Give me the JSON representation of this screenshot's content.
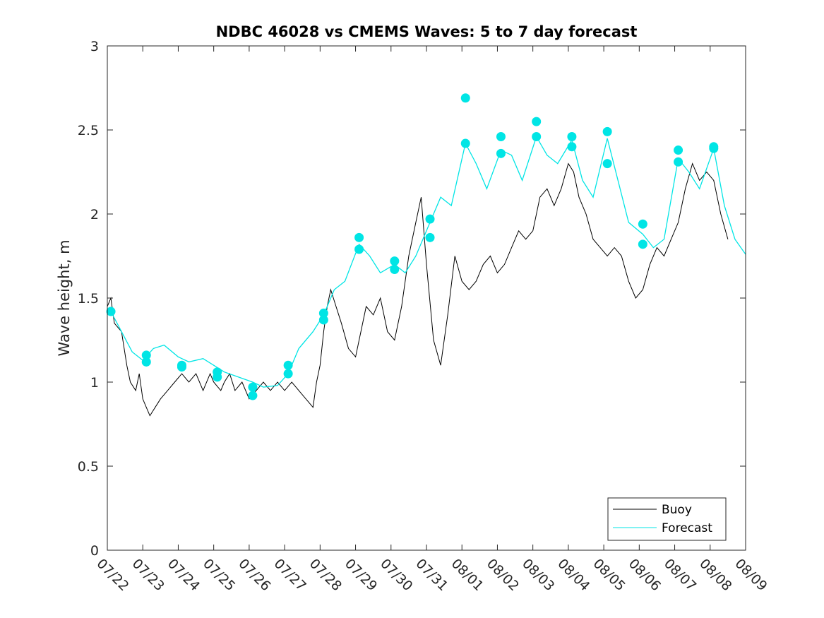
{
  "chart_data": {
    "type": "line",
    "title": "NDBC 46028 vs CMEMS Waves: 5 to 7 day forecast",
    "xlabel": "",
    "ylabel": "Wave height, m",
    "x_tick_labels": [
      "07/22",
      "07/23",
      "07/24",
      "07/25",
      "07/26",
      "07/27",
      "07/28",
      "07/29",
      "07/30",
      "07/31",
      "08/01",
      "08/02",
      "08/03",
      "08/04",
      "08/05",
      "08/06",
      "08/07",
      "08/08",
      "08/09"
    ],
    "xlim_days": [
      0,
      18
    ],
    "ylim": [
      0,
      3
    ],
    "y_ticks": [
      0,
      0.5,
      1,
      1.5,
      2,
      2.5,
      3
    ],
    "grid": false,
    "legend": {
      "position": "bottom-right",
      "entries": [
        {
          "label": "Buoy",
          "color": "#000000"
        },
        {
          "label": "Forecast",
          "color": "#00e5e5"
        }
      ]
    },
    "series": [
      {
        "name": "Buoy",
        "color": "#000000",
        "description_points": [
          [
            0.0,
            1.45
          ],
          [
            0.1,
            1.5
          ],
          [
            0.2,
            1.35
          ],
          [
            0.4,
            1.3
          ],
          [
            0.55,
            1.1
          ],
          [
            0.65,
            1.0
          ],
          [
            0.8,
            0.95
          ],
          [
            0.9,
            1.05
          ],
          [
            1.0,
            0.9
          ],
          [
            1.1,
            0.85
          ],
          [
            1.2,
            0.8
          ],
          [
            1.35,
            0.85
          ],
          [
            1.5,
            0.9
          ],
          [
            1.7,
            0.95
          ],
          [
            1.9,
            1.0
          ],
          [
            2.1,
            1.05
          ],
          [
            2.3,
            1.0
          ],
          [
            2.5,
            1.05
          ],
          [
            2.7,
            0.95
          ],
          [
            2.9,
            1.05
          ],
          [
            3.0,
            1.0
          ],
          [
            3.2,
            0.95
          ],
          [
            3.3,
            1.0
          ],
          [
            3.45,
            1.05
          ],
          [
            3.6,
            0.95
          ],
          [
            3.8,
            1.0
          ],
          [
            4.0,
            0.9
          ],
          [
            4.2,
            0.95
          ],
          [
            4.4,
            1.0
          ],
          [
            4.6,
            0.95
          ],
          [
            4.8,
            1.0
          ],
          [
            5.0,
            0.95
          ],
          [
            5.2,
            1.0
          ],
          [
            5.4,
            0.95
          ],
          [
            5.6,
            0.9
          ],
          [
            5.8,
            0.85
          ],
          [
            5.9,
            1.0
          ],
          [
            6.0,
            1.1
          ],
          [
            6.1,
            1.3
          ],
          [
            6.2,
            1.45
          ],
          [
            6.3,
            1.55
          ],
          [
            6.45,
            1.45
          ],
          [
            6.6,
            1.35
          ],
          [
            6.8,
            1.2
          ],
          [
            7.0,
            1.15
          ],
          [
            7.15,
            1.3
          ],
          [
            7.3,
            1.45
          ],
          [
            7.5,
            1.4
          ],
          [
            7.7,
            1.5
          ],
          [
            7.9,
            1.3
          ],
          [
            8.1,
            1.25
          ],
          [
            8.3,
            1.45
          ],
          [
            8.5,
            1.75
          ],
          [
            8.7,
            1.95
          ],
          [
            8.85,
            2.1
          ],
          [
            9.0,
            1.7
          ],
          [
            9.2,
            1.25
          ],
          [
            9.4,
            1.1
          ],
          [
            9.6,
            1.4
          ],
          [
            9.8,
            1.75
          ],
          [
            10.0,
            1.6
          ],
          [
            10.2,
            1.55
          ],
          [
            10.4,
            1.6
          ],
          [
            10.6,
            1.7
          ],
          [
            10.8,
            1.75
          ],
          [
            11.0,
            1.65
          ],
          [
            11.2,
            1.7
          ],
          [
            11.4,
            1.8
          ],
          [
            11.6,
            1.9
          ],
          [
            11.8,
            1.85
          ],
          [
            12.0,
            1.9
          ],
          [
            12.2,
            2.1
          ],
          [
            12.4,
            2.15
          ],
          [
            12.6,
            2.05
          ],
          [
            12.8,
            2.15
          ],
          [
            13.0,
            2.3
          ],
          [
            13.15,
            2.25
          ],
          [
            13.3,
            2.1
          ],
          [
            13.5,
            2.0
          ],
          [
            13.7,
            1.85
          ],
          [
            13.9,
            1.8
          ],
          [
            14.1,
            1.75
          ],
          [
            14.3,
            1.8
          ],
          [
            14.5,
            1.75
          ],
          [
            14.7,
            1.6
          ],
          [
            14.9,
            1.5
          ],
          [
            15.1,
            1.55
          ],
          [
            15.3,
            1.7
          ],
          [
            15.5,
            1.8
          ],
          [
            15.7,
            1.75
          ],
          [
            15.9,
            1.85
          ],
          [
            16.1,
            1.95
          ],
          [
            16.3,
            2.15
          ],
          [
            16.5,
            2.3
          ],
          [
            16.7,
            2.2
          ],
          [
            16.9,
            2.25
          ],
          [
            17.1,
            2.2
          ],
          [
            17.3,
            2.0
          ],
          [
            17.5,
            1.85
          ]
        ]
      },
      {
        "name": "Forecast",
        "color": "#00e5e5",
        "description_points": [
          [
            0.1,
            1.42
          ],
          [
            0.4,
            1.3
          ],
          [
            0.7,
            1.18
          ],
          [
            1.0,
            1.13
          ],
          [
            1.3,
            1.2
          ],
          [
            1.6,
            1.22
          ],
          [
            2.0,
            1.15
          ],
          [
            2.3,
            1.12
          ],
          [
            2.7,
            1.14
          ],
          [
            3.0,
            1.1
          ],
          [
            3.3,
            1.06
          ],
          [
            3.7,
            1.03
          ],
          [
            4.1,
            1.0
          ],
          [
            4.4,
            0.97
          ],
          [
            4.8,
            0.98
          ],
          [
            5.1,
            1.05
          ],
          [
            5.4,
            1.2
          ],
          [
            5.8,
            1.3
          ],
          [
            6.1,
            1.4
          ],
          [
            6.4,
            1.55
          ],
          [
            6.7,
            1.6
          ],
          [
            7.1,
            1.82
          ],
          [
            7.4,
            1.75
          ],
          [
            7.7,
            1.65
          ],
          [
            8.1,
            1.7
          ],
          [
            8.4,
            1.65
          ],
          [
            8.7,
            1.75
          ],
          [
            9.1,
            1.95
          ],
          [
            9.4,
            2.1
          ],
          [
            9.7,
            2.05
          ],
          [
            10.1,
            2.42
          ],
          [
            10.4,
            2.3
          ],
          [
            10.7,
            2.15
          ],
          [
            11.1,
            2.38
          ],
          [
            11.4,
            2.35
          ],
          [
            11.7,
            2.2
          ],
          [
            12.1,
            2.46
          ],
          [
            12.4,
            2.35
          ],
          [
            12.7,
            2.3
          ],
          [
            13.1,
            2.44
          ],
          [
            13.4,
            2.2
          ],
          [
            13.7,
            2.1
          ],
          [
            14.1,
            2.45
          ],
          [
            14.4,
            2.2
          ],
          [
            14.7,
            1.95
          ],
          [
            15.1,
            1.88
          ],
          [
            15.4,
            1.8
          ],
          [
            15.7,
            1.85
          ],
          [
            16.1,
            2.33
          ],
          [
            16.4,
            2.25
          ],
          [
            16.7,
            2.15
          ],
          [
            17.1,
            2.39
          ],
          [
            17.4,
            2.05
          ],
          [
            17.7,
            1.85
          ],
          [
            18.0,
            1.76
          ]
        ],
        "markers": [
          [
            0.1,
            1.42
          ],
          [
            1.1,
            1.16
          ],
          [
            1.1,
            1.12
          ],
          [
            2.1,
            1.1
          ],
          [
            2.1,
            1.09
          ],
          [
            3.1,
            1.06
          ],
          [
            3.1,
            1.03
          ],
          [
            4.1,
            0.97
          ],
          [
            4.1,
            0.92
          ],
          [
            5.1,
            1.1
          ],
          [
            5.1,
            1.05
          ],
          [
            6.1,
            1.41
          ],
          [
            6.1,
            1.37
          ],
          [
            7.1,
            1.86
          ],
          [
            7.1,
            1.79
          ],
          [
            8.1,
            1.72
          ],
          [
            8.1,
            1.67
          ],
          [
            9.1,
            1.97
          ],
          [
            9.1,
            1.86
          ],
          [
            10.1,
            2.69
          ],
          [
            10.1,
            2.42
          ],
          [
            11.1,
            2.46
          ],
          [
            11.1,
            2.36
          ],
          [
            12.1,
            2.55
          ],
          [
            12.1,
            2.46
          ],
          [
            13.1,
            2.46
          ],
          [
            13.1,
            2.4
          ],
          [
            14.1,
            2.49
          ],
          [
            14.1,
            2.3
          ],
          [
            15.1,
            1.94
          ],
          [
            15.1,
            1.82
          ],
          [
            16.1,
            2.38
          ],
          [
            16.1,
            2.31
          ],
          [
            17.1,
            2.4
          ],
          [
            17.1,
            2.39
          ]
        ]
      }
    ]
  }
}
